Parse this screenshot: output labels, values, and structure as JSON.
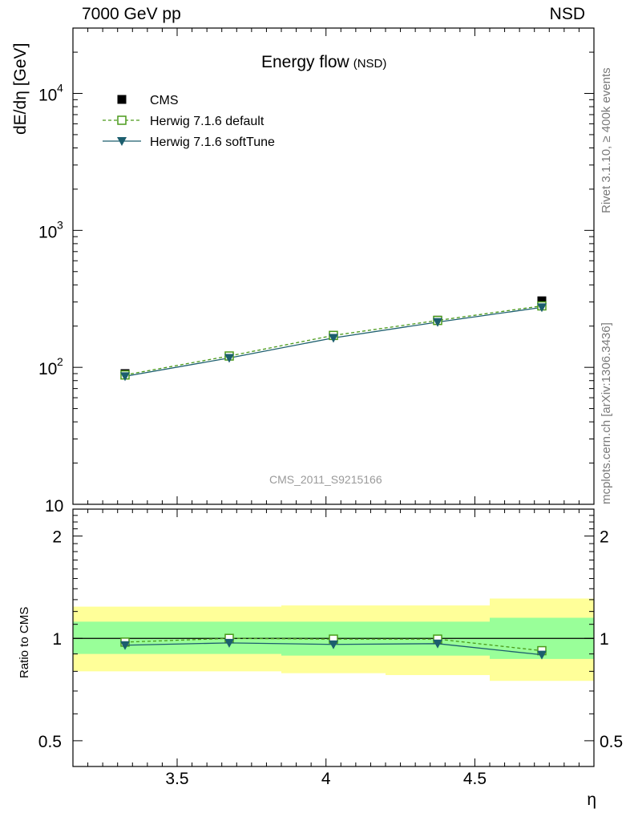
{
  "header": {
    "left_label": "7000 GeV pp",
    "right_label": "NSD"
  },
  "plot_title": {
    "main": "Energy flow",
    "sub": "(NSD)"
  },
  "side_labels": {
    "rivet": "Rivet 3.1.10, ≥ 400k events",
    "mcplots": "mcplots.cern.ch [arXiv:1306.3436]"
  },
  "reference": "CMS_2011_S9215166",
  "chart_data": [
    {
      "type": "scatter",
      "ylabel": "dE/dη [GeV]",
      "xlabel": "η",
      "xlim": [
        3.15,
        4.9
      ],
      "ylim": [
        10,
        30000
      ],
      "yscale": "log",
      "x": [
        3.325,
        3.675,
        4.025,
        4.375,
        4.725
      ],
      "series": [
        {
          "name": "CMS",
          "values": [
            90,
            121,
            171,
            221,
            306
          ],
          "color": "#000000",
          "marker": "filled-square"
        },
        {
          "name": "Herwig 7.1.6 default",
          "values": [
            88,
            121,
            171,
            220,
            281
          ],
          "color": "#4a9a1a",
          "marker": "open-square",
          "line": "dashed"
        },
        {
          "name": "Herwig 7.1.6 softTune",
          "values": [
            86,
            117,
            164,
            214,
            274
          ],
          "color": "#1c5e6e",
          "marker": "filled-triangle-down",
          "line": "solid"
        }
      ],
      "xticks": [],
      "yticks": [
        {
          "value": 10,
          "base": "10",
          "exp": ""
        },
        {
          "value": 100,
          "base": "10",
          "exp": "2"
        },
        {
          "value": 1000,
          "base": "10",
          "exp": "3"
        },
        {
          "value": 10000,
          "base": "10",
          "exp": "4"
        }
      ],
      "legend": "top-left"
    },
    {
      "type": "scatter",
      "ylabel": "Ratio to CMS",
      "xlabel": "η",
      "xlim": [
        3.15,
        4.9
      ],
      "ylim": [
        0.42,
        2.4
      ],
      "yscale": "log",
      "x": [
        3.325,
        3.675,
        4.025,
        4.375,
        4.725
      ],
      "bins": [
        [
          3.15,
          3.5
        ],
        [
          3.5,
          3.85
        ],
        [
          3.85,
          4.2
        ],
        [
          4.2,
          4.55
        ],
        [
          4.55,
          4.9
        ]
      ],
      "band_green": [
        [
          0.9,
          1.12
        ],
        [
          0.9,
          1.12
        ],
        [
          0.89,
          1.12
        ],
        [
          0.89,
          1.12
        ],
        [
          0.87,
          1.15
        ]
      ],
      "band_yellow": [
        [
          0.8,
          1.24
        ],
        [
          0.8,
          1.24
        ],
        [
          0.79,
          1.25
        ],
        [
          0.78,
          1.25
        ],
        [
          0.75,
          1.31
        ]
      ],
      "series": [
        {
          "name": "Herwig 7.1.6 default",
          "values": [
            0.975,
            1.0,
            0.995,
            0.995,
            0.92
          ]
        },
        {
          "name": "Herwig 7.1.6 softTune",
          "values": [
            0.955,
            0.97,
            0.96,
            0.965,
            0.895
          ]
        }
      ],
      "xticks": [
        {
          "value": 3.5,
          "label": "3.5"
        },
        {
          "value": 4,
          "label": "4"
        },
        {
          "value": 4.5,
          "label": "4.5"
        }
      ],
      "yticks": [
        {
          "value": 0.5,
          "label": "0.5"
        },
        {
          "value": 1,
          "label": "1"
        },
        {
          "value": 2,
          "label": "2"
        }
      ]
    }
  ]
}
